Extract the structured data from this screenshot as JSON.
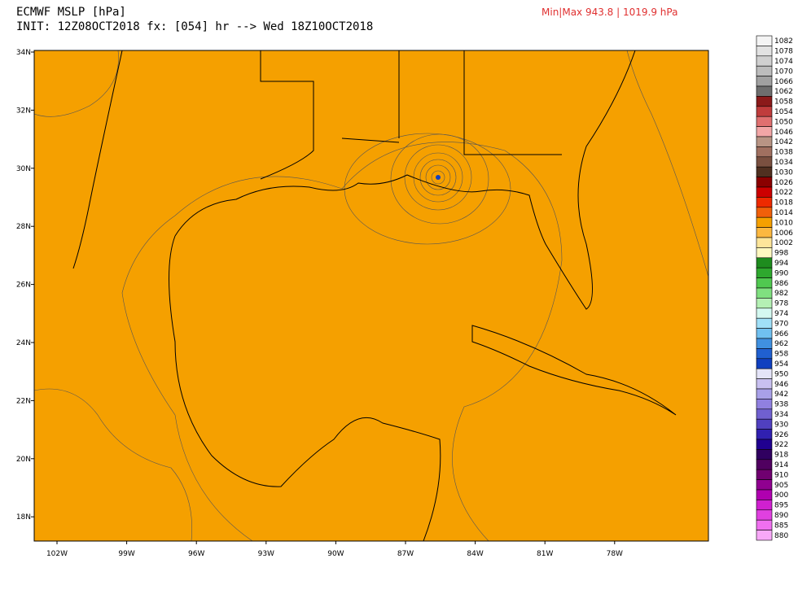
{
  "header": {
    "title": "ECMWF MSLP [hPa]",
    "init": "INIT: 12Z08OCT2018 fx: [054] hr --> Wed 18Z10OCT2018",
    "minmax": "Min|Max 943.8 | 1019.9 hPa"
  },
  "map": {
    "lat_labels": [
      "34N",
      "32N",
      "30N",
      "28N",
      "26N",
      "24N",
      "22N",
      "20N",
      "18N"
    ],
    "lon_labels": [
      "102W",
      "99W",
      "96W",
      "93W",
      "90W",
      "87W",
      "84W",
      "81W",
      "78W"
    ]
  },
  "legend": {
    "levels": [
      {
        "label": "1082",
        "color": "#f4f4f4"
      },
      {
        "label": "1078",
        "color": "#e2e2e2"
      },
      {
        "label": "1074",
        "color": "#d0d0d0"
      },
      {
        "label": "1070",
        "color": "#bcbcbc"
      },
      {
        "label": "1066",
        "color": "#a0a0a0"
      },
      {
        "label": "1062",
        "color": "#6e6e6e"
      },
      {
        "label": "1058",
        "color": "#8b1a1a"
      },
      {
        "label": "1054",
        "color": "#c03c3c"
      },
      {
        "label": "1050",
        "color": "#e07070"
      },
      {
        "label": "1046",
        "color": "#f2a6a6"
      },
      {
        "label": "1042",
        "color": "#b89484"
      },
      {
        "label": "1038",
        "color": "#a07060"
      },
      {
        "label": "1034",
        "color": "#7a5040"
      },
      {
        "label": "1030",
        "color": "#503020"
      },
      {
        "label": "1026",
        "color": "#8b0000"
      },
      {
        "label": "1022",
        "color": "#cc0000"
      },
      {
        "label": "1018",
        "color": "#ee2a00"
      },
      {
        "label": "1014",
        "color": "#f0600a"
      },
      {
        "label": "1010",
        "color": "#f5a000"
      },
      {
        "label": "1006",
        "color": "#fcb840"
      },
      {
        "label": "1002",
        "color": "#fde59a"
      },
      {
        "label": "998",
        "color": "#fff8c0"
      },
      {
        "label": "994",
        "color": "#1e8c1e"
      },
      {
        "label": "990",
        "color": "#2ea82e"
      },
      {
        "label": "986",
        "color": "#50c850"
      },
      {
        "label": "982",
        "color": "#80e080"
      },
      {
        "label": "978",
        "color": "#b4f0b4"
      },
      {
        "label": "974",
        "color": "#d4f8f0"
      },
      {
        "label": "970",
        "color": "#a0e0f8"
      },
      {
        "label": "966",
        "color": "#70c0f0"
      },
      {
        "label": "962",
        "color": "#4090e0"
      },
      {
        "label": "958",
        "color": "#2060d0"
      },
      {
        "label": "954",
        "color": "#1040c0"
      },
      {
        "label": "950",
        "color": "#e4e4f8"
      },
      {
        "label": "946",
        "color": "#c8c0f0"
      },
      {
        "label": "942",
        "color": "#a8a0e8"
      },
      {
        "label": "938",
        "color": "#9080e0"
      },
      {
        "label": "934",
        "color": "#7060d0"
      },
      {
        "label": "930",
        "color": "#5040c0"
      },
      {
        "label": "926",
        "color": "#3020b0"
      },
      {
        "label": "922",
        "color": "#200090"
      },
      {
        "label": "918",
        "color": "#300060"
      },
      {
        "label": "914",
        "color": "#500060"
      },
      {
        "label": "910",
        "color": "#700070"
      },
      {
        "label": "905",
        "color": "#900090"
      },
      {
        "label": "900",
        "color": "#b000b0"
      },
      {
        "label": "895",
        "color": "#d020d0"
      },
      {
        "label": "890",
        "color": "#e040e0"
      },
      {
        "label": "885",
        "color": "#f070f0"
      },
      {
        "label": "880",
        "color": "#f8a8f8"
      }
    ]
  }
}
